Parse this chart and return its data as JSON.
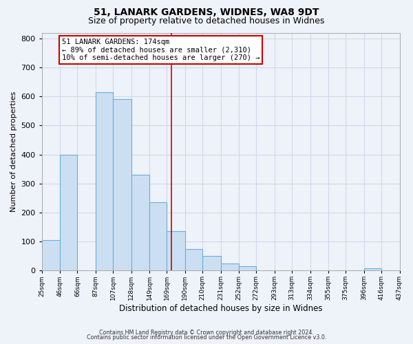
{
  "title": "51, LANARK GARDENS, WIDNES, WA8 9DT",
  "subtitle": "Size of property relative to detached houses in Widnes",
  "xlabel": "Distribution of detached houses by size in Widnes",
  "ylabel": "Number of detached properties",
  "bins": [
    25,
    46,
    66,
    87,
    107,
    128,
    149,
    169,
    190,
    210,
    231,
    252,
    272,
    293,
    313,
    334,
    355,
    375,
    396,
    416,
    437
  ],
  "bar_heights": [
    105,
    400,
    0,
    615,
    590,
    330,
    235,
    135,
    75,
    50,
    25,
    15,
    0,
    0,
    0,
    0,
    0,
    0,
    8,
    0
  ],
  "bar_color": "#ccdff2",
  "bar_edgecolor": "#6aaed6",
  "vline_x": 174,
  "vline_color": "#cc0000",
  "annotation_text": "51 LANARK GARDENS: 174sqm\n← 89% of detached houses are smaller (2,310)\n10% of semi-detached houses are larger (270) →",
  "annotation_box_edgecolor": "#cc0000",
  "annotation_box_facecolor": "white",
  "ylim": [
    0,
    820
  ],
  "yticks": [
    0,
    100,
    200,
    300,
    400,
    500,
    600,
    700,
    800
  ],
  "tick_labels": [
    "25sqm",
    "46sqm",
    "66sqm",
    "87sqm",
    "107sqm",
    "128sqm",
    "149sqm",
    "169sqm",
    "190sqm",
    "210sqm",
    "231sqm",
    "252sqm",
    "272sqm",
    "293sqm",
    "313sqm",
    "334sqm",
    "355sqm",
    "375sqm",
    "396sqm",
    "416sqm",
    "437sqm"
  ],
  "footer1": "Contains HM Land Registry data © Crown copyright and database right 2024.",
  "footer2": "Contains public sector information licensed under the Open Government Licence v3.0.",
  "bg_color": "#eef2f9",
  "plot_bg_color": "#eef2f9",
  "title_fontsize": 10,
  "subtitle_fontsize": 9,
  "grid_color": "#d0d8e8"
}
